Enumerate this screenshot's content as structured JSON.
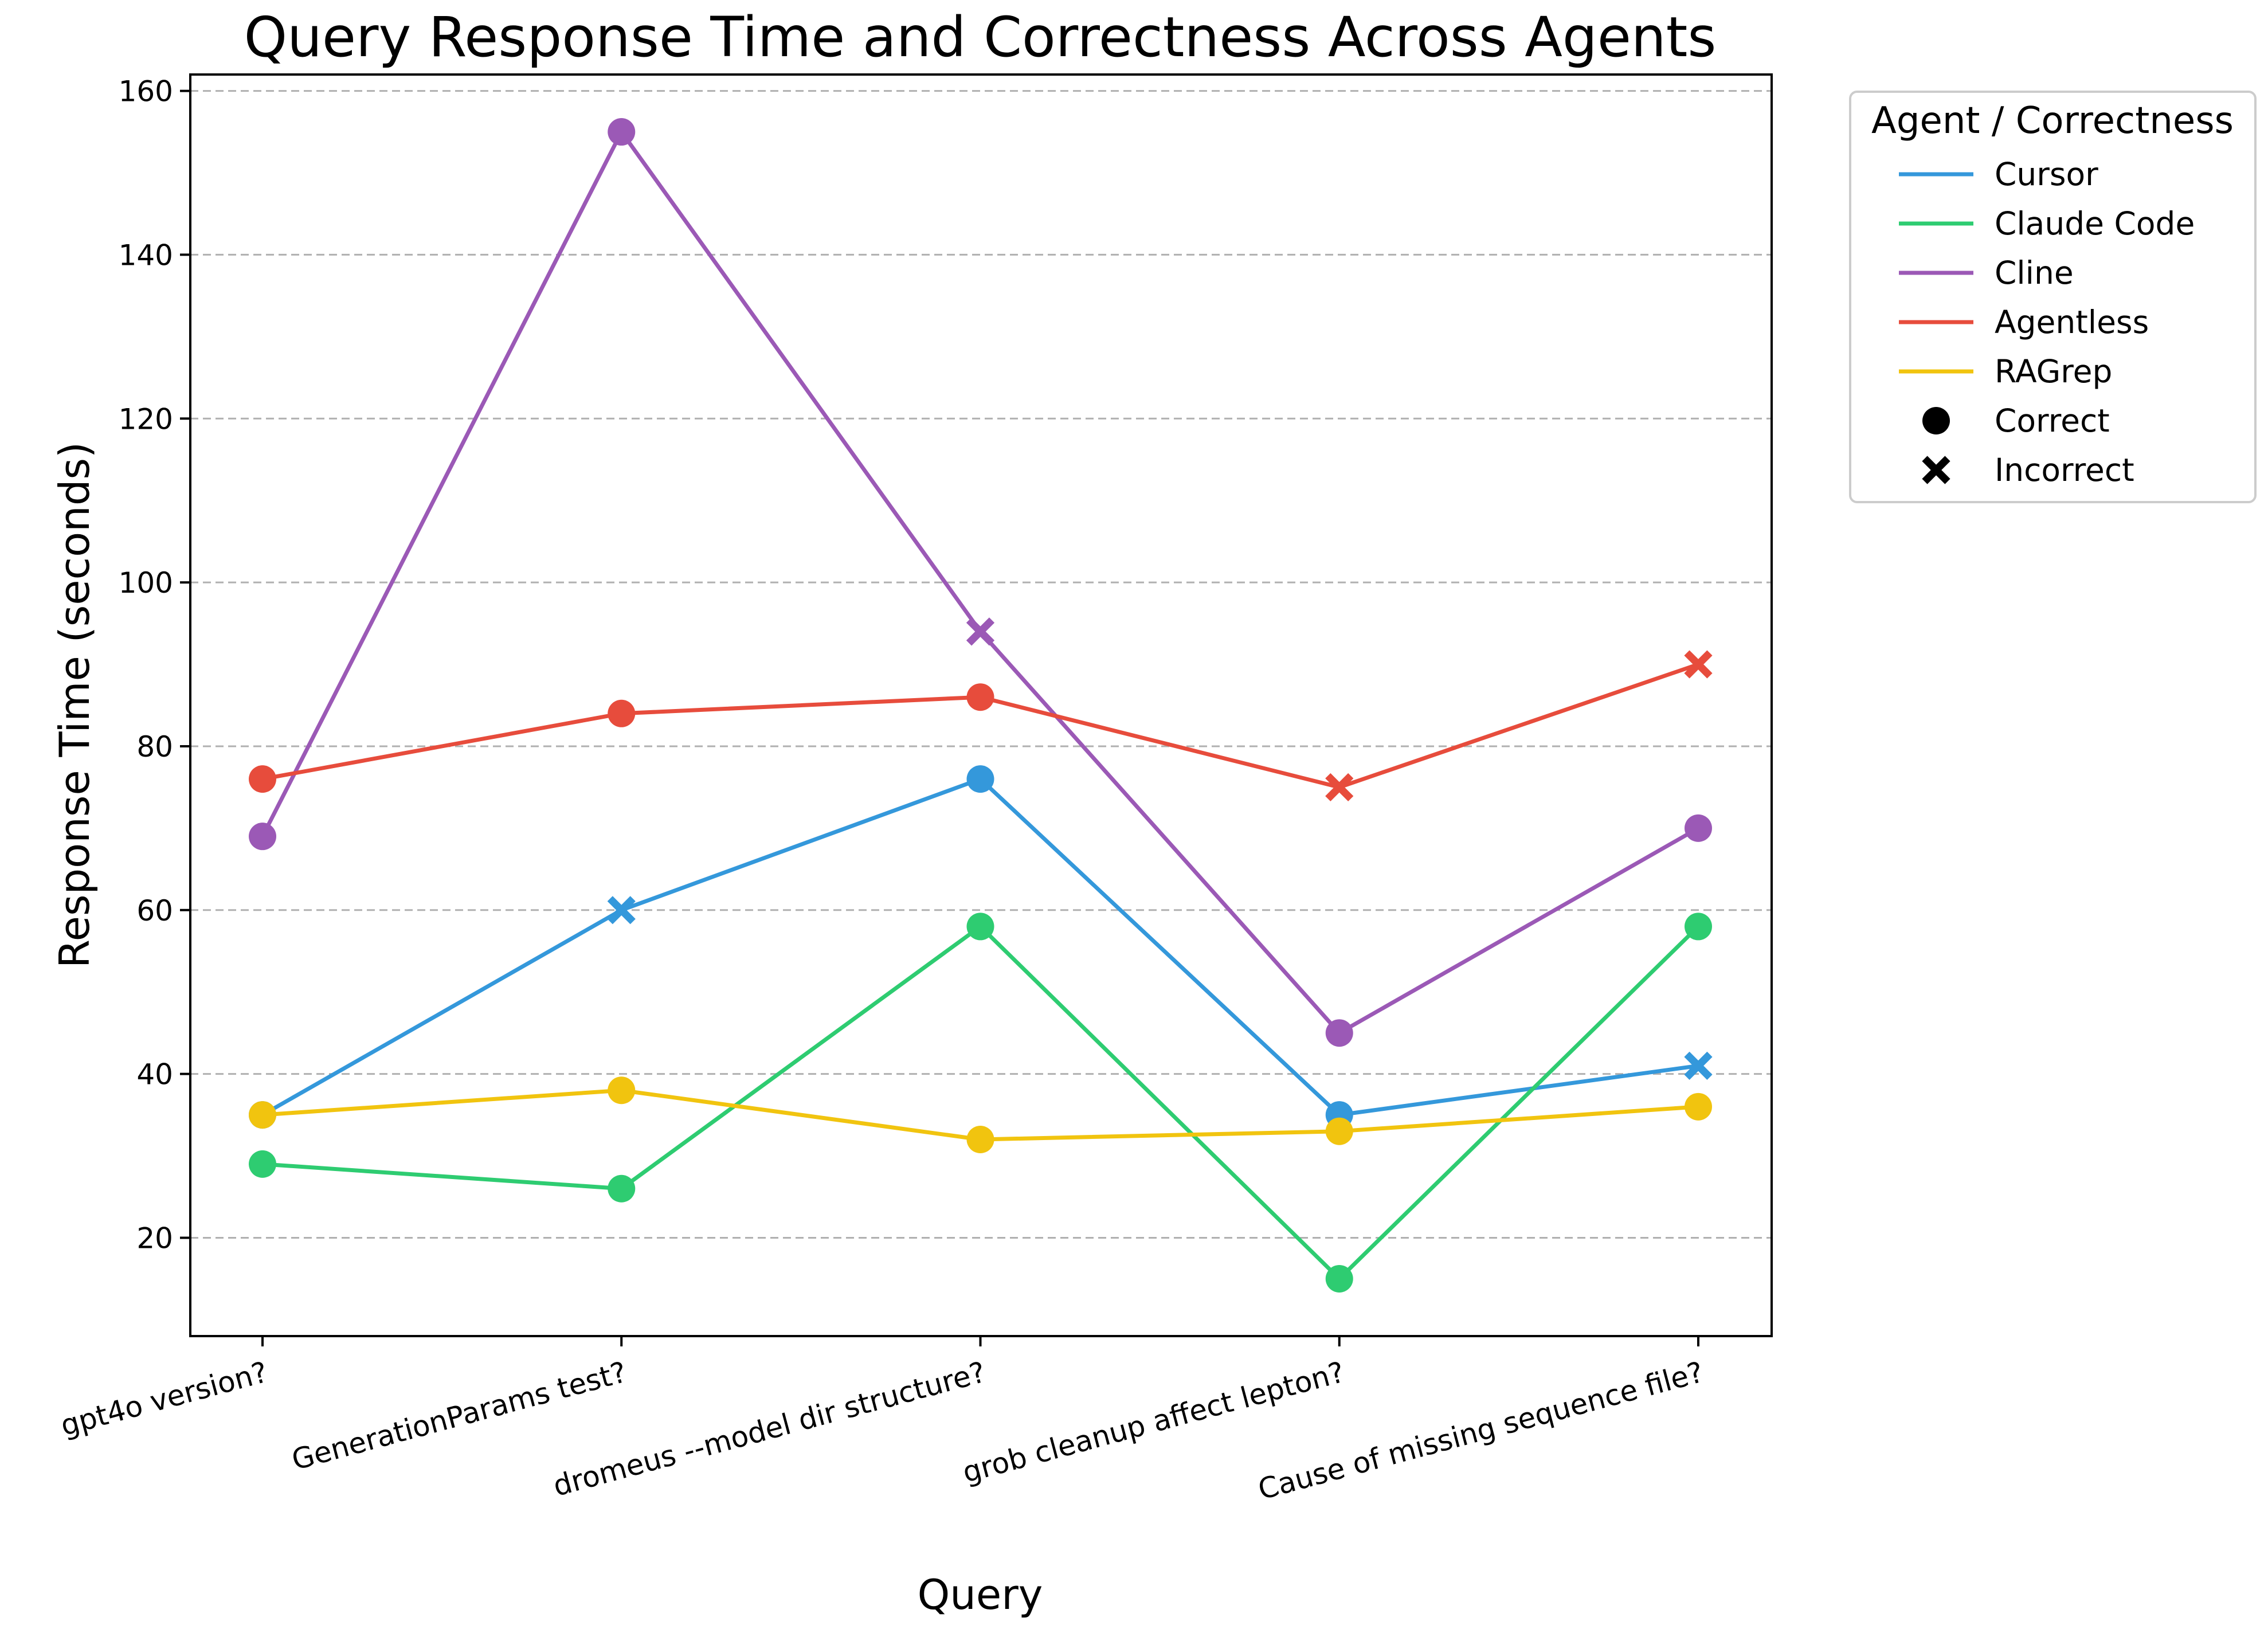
{
  "chart_data": {
    "type": "line",
    "title": "Query Response Time and Correctness Across Agents",
    "xlabel": "Query",
    "ylabel": "Response Time (seconds)",
    "categories": [
      "gpt4o version?",
      "GenerationParams test?",
      "dromeus --model dir structure?",
      "grob cleanup affect lepton?",
      "Cause of missing sequence file?"
    ],
    "ylim": [
      8,
      162
    ],
    "yticks": [
      20,
      40,
      60,
      80,
      100,
      120,
      140,
      160
    ],
    "grid": "horizontal dashed",
    "legend": {
      "title": "Agent / Correctness",
      "placement": "outside top-right",
      "marker_entries": [
        {
          "label": "Correct",
          "marker": "circle"
        },
        {
          "label": "Incorrect",
          "marker": "x"
        }
      ]
    },
    "series": [
      {
        "name": "Cursor",
        "color": "#3498db",
        "values": [
          35,
          60,
          76,
          35,
          41
        ],
        "correct": [
          true,
          false,
          true,
          true,
          false
        ]
      },
      {
        "name": "Claude Code",
        "color": "#2ecc71",
        "values": [
          29,
          26,
          58,
          15,
          58
        ],
        "correct": [
          true,
          true,
          true,
          true,
          true
        ]
      },
      {
        "name": "Cline",
        "color": "#9b59b6",
        "values": [
          69,
          155,
          94,
          45,
          70
        ],
        "correct": [
          true,
          true,
          false,
          true,
          true
        ]
      },
      {
        "name": "Agentless",
        "color": "#e74c3c",
        "values": [
          76,
          84,
          86,
          75,
          90
        ],
        "correct": [
          true,
          true,
          true,
          false,
          false
        ]
      },
      {
        "name": "RAGrep",
        "color": "#f1c40f",
        "values": [
          35,
          38,
          32,
          33,
          36
        ],
        "correct": [
          true,
          true,
          true,
          true,
          true
        ]
      }
    ]
  }
}
